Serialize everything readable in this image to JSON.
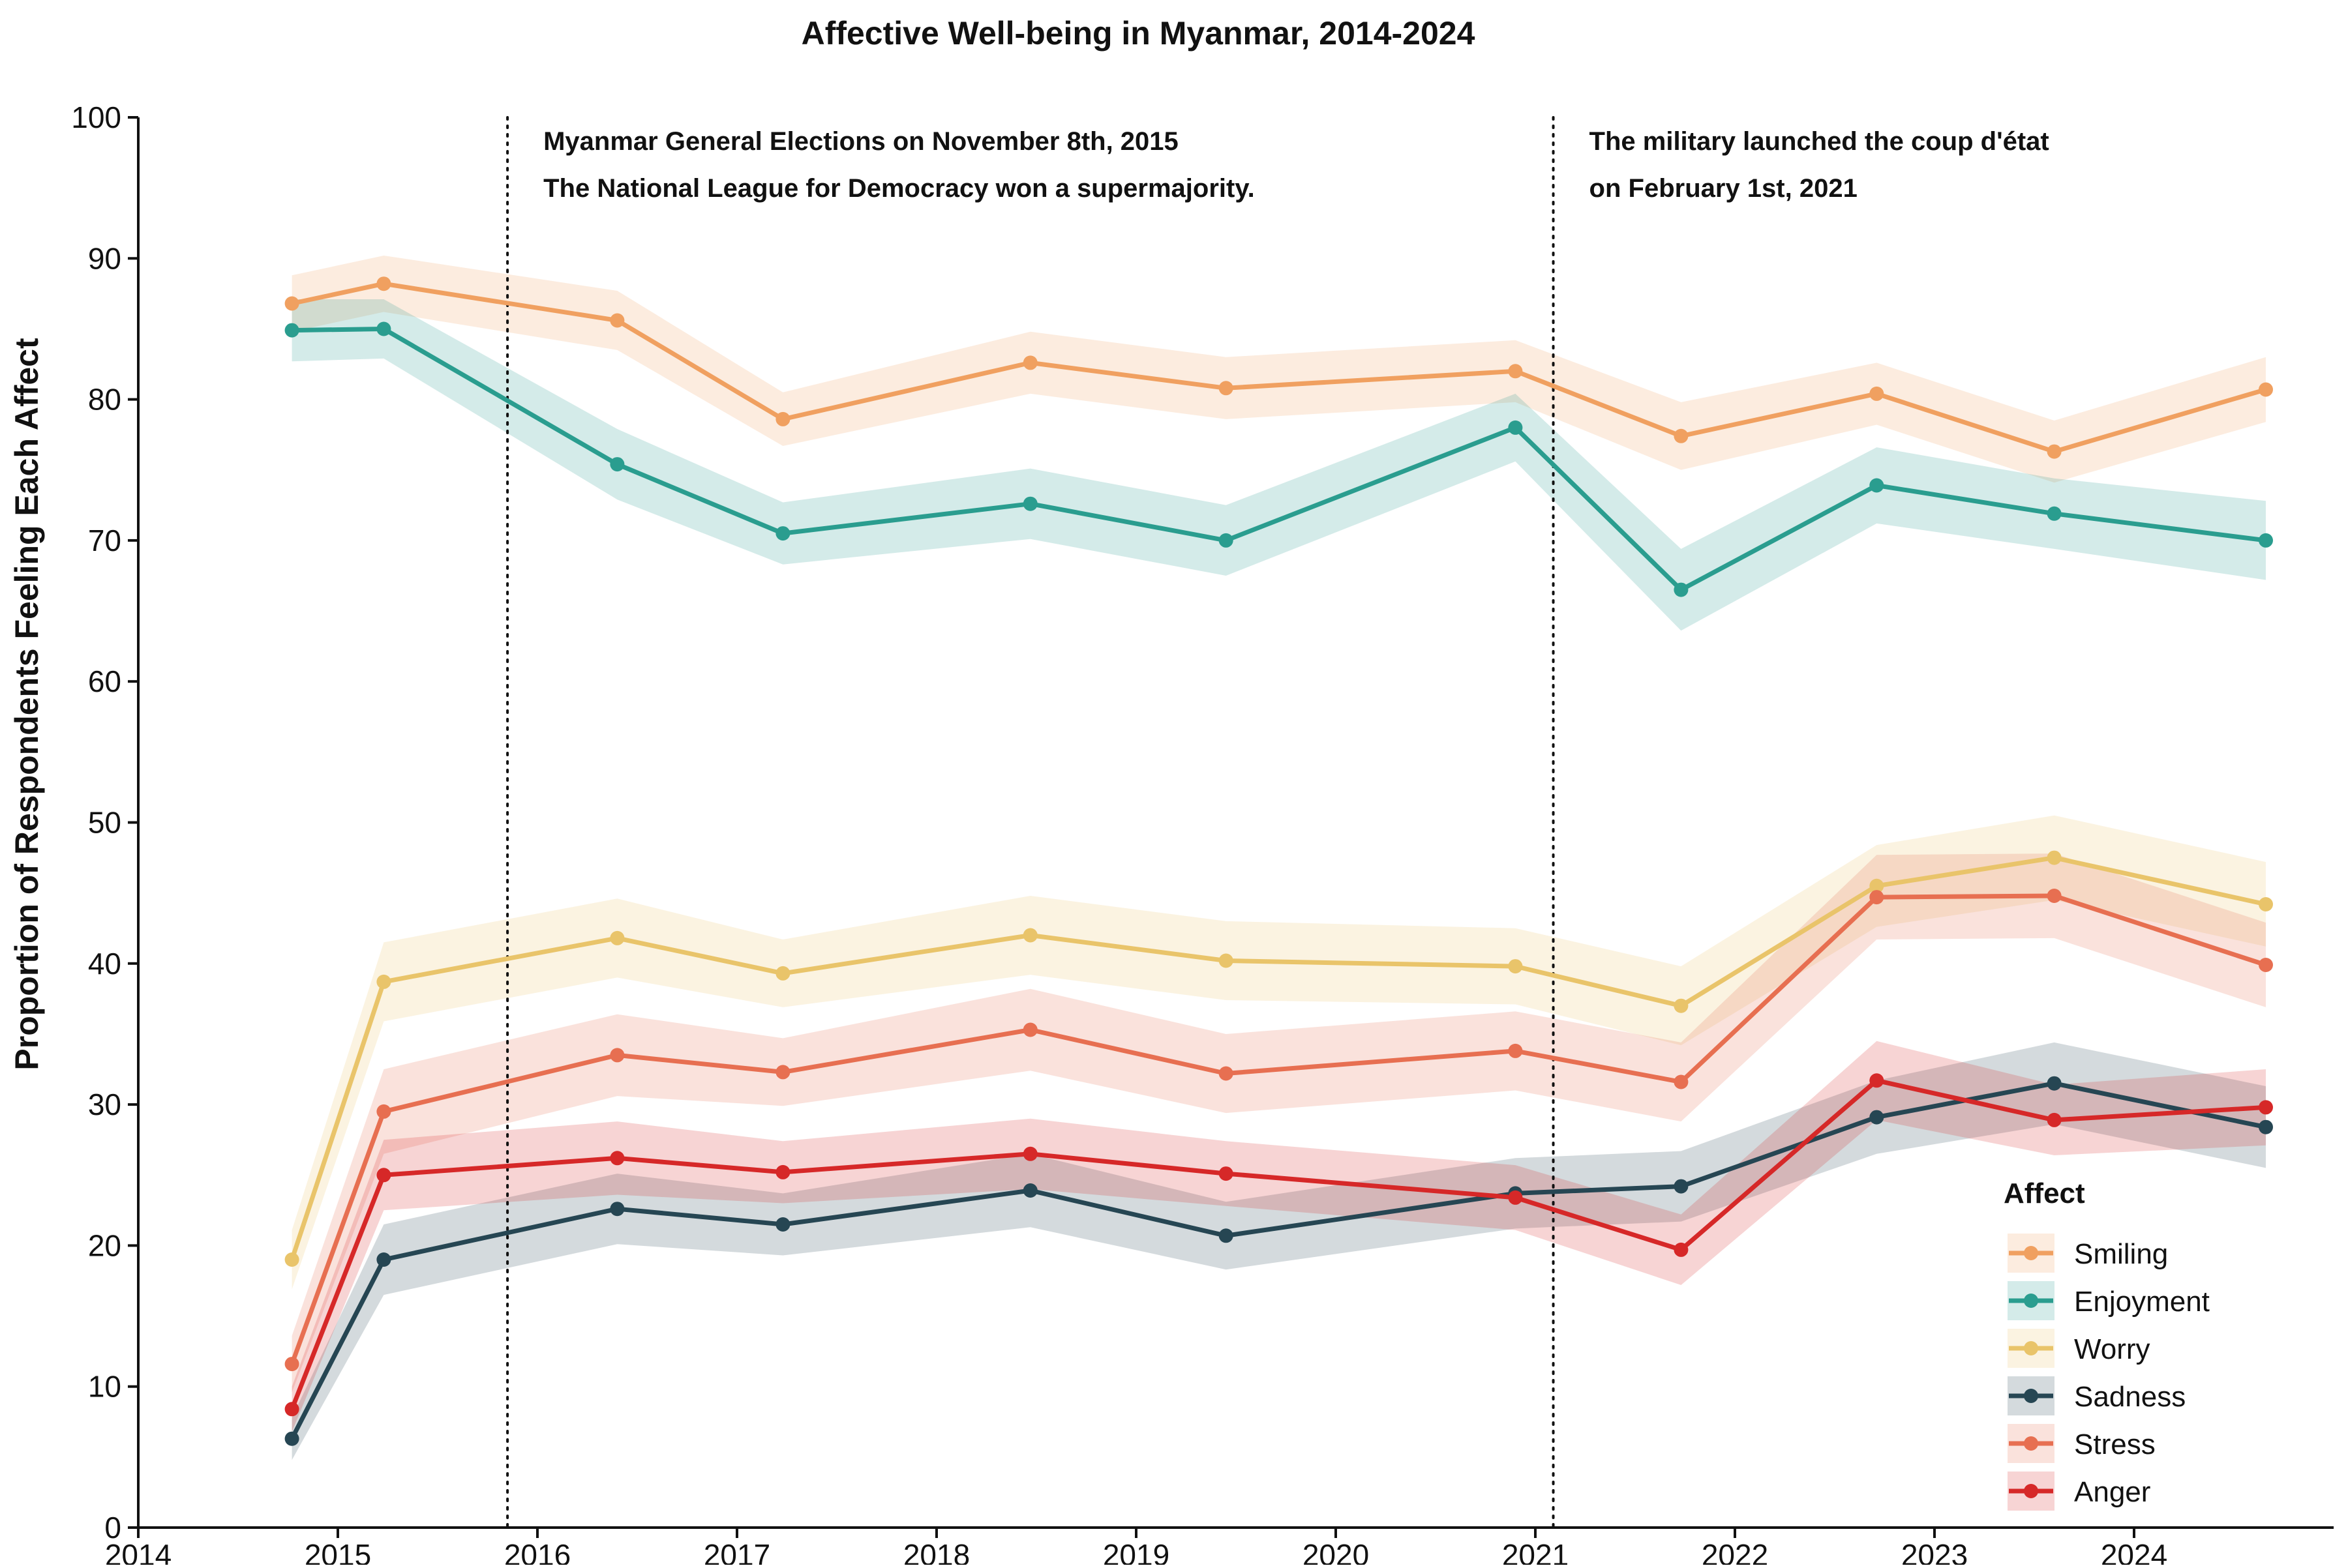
{
  "chart_data": {
    "type": "line",
    "title": "Affective Well-being in Myanmar, 2014-2024",
    "xlabel": "",
    "ylabel": "Proportion of Respondents Feeling Each Affect",
    "xlim": [
      2014,
      2025
    ],
    "ylim": [
      0,
      100
    ],
    "x_ticks": [
      2014,
      2015,
      2016,
      2017,
      2018,
      2019,
      2020,
      2021,
      2022,
      2023,
      2024
    ],
    "y_ticks": [
      0,
      10,
      20,
      30,
      40,
      50,
      60,
      70,
      80,
      90,
      100
    ],
    "grid": false,
    "legend": {
      "title": "Affect",
      "position": "lower-right"
    },
    "x": [
      2014.77,
      2015.23,
      2016.4,
      2017.23,
      2018.47,
      2019.45,
      2020.9,
      2021.73,
      2022.71,
      2023.6,
      2024.66
    ],
    "series": [
      {
        "name": "Smiling",
        "color": "#F0A060",
        "band_color": "#FDE3D3",
        "values": [
          86.8,
          88.2,
          85.6,
          78.6,
          82.6,
          80.8,
          82.0,
          77.4,
          80.4,
          76.3,
          80.7
        ],
        "lower": [
          84.8,
          86.2,
          83.5,
          76.7,
          80.4,
          78.6,
          79.8,
          75.0,
          78.2,
          74.1,
          78.4
        ],
        "upper": [
          88.8,
          90.2,
          87.7,
          80.5,
          84.8,
          83.0,
          84.2,
          79.8,
          82.6,
          78.5,
          83.0
        ]
      },
      {
        "name": "Enjoyment",
        "color": "#2A9D8F",
        "band_color": "#CCE8E4",
        "values": [
          84.9,
          85.0,
          75.4,
          70.5,
          72.6,
          70.0,
          78.0,
          66.5,
          73.9,
          71.9,
          70.0
        ],
        "lower": [
          82.7,
          82.9,
          72.9,
          68.3,
          70.1,
          67.5,
          75.6,
          63.6,
          71.2,
          69.4,
          67.2
        ],
        "upper": [
          87.1,
          87.1,
          77.9,
          72.7,
          75.1,
          72.5,
          80.4,
          69.4,
          76.6,
          74.4,
          72.8
        ]
      },
      {
        "name": "Worry",
        "color": "#E9C46A",
        "band_color": "#FAEED5",
        "values": [
          19.0,
          38.7,
          41.8,
          39.3,
          42.0,
          40.2,
          39.8,
          37.0,
          45.5,
          47.5,
          44.2
        ],
        "lower": [
          16.9,
          35.9,
          39.0,
          36.9,
          39.2,
          37.4,
          37.1,
          34.2,
          42.6,
          44.5,
          41.2
        ],
        "upper": [
          21.1,
          41.5,
          44.6,
          41.7,
          44.8,
          43.0,
          42.5,
          39.8,
          48.4,
          50.5,
          47.2
        ]
      },
      {
        "name": "Sadness",
        "color": "#264653",
        "band_color": "#D2D8DC",
        "values": [
          6.3,
          19.0,
          22.6,
          21.5,
          23.9,
          20.7,
          23.7,
          24.2,
          29.1,
          31.5,
          28.4
        ],
        "lower": [
          4.8,
          16.5,
          20.1,
          19.3,
          21.3,
          18.3,
          21.2,
          21.7,
          26.5,
          28.6,
          25.5
        ],
        "upper": [
          7.8,
          21.5,
          25.1,
          23.7,
          26.5,
          23.1,
          26.2,
          26.7,
          31.7,
          34.4,
          31.3
        ]
      },
      {
        "name": "Stress",
        "color": "#E76F51",
        "band_color": "#F9D5CC",
        "values": [
          11.6,
          29.5,
          33.5,
          32.3,
          35.3,
          32.2,
          33.8,
          31.6,
          44.7,
          44.8,
          39.9
        ],
        "lower": [
          9.6,
          26.5,
          30.6,
          29.9,
          32.4,
          29.4,
          31.0,
          28.8,
          41.7,
          41.8,
          36.9
        ],
        "upper": [
          13.6,
          32.5,
          36.4,
          34.7,
          38.2,
          35.0,
          36.6,
          34.4,
          47.7,
          47.8,
          42.9
        ]
      },
      {
        "name": "Anger",
        "color": "#D62828",
        "band_color": "#F5CACA",
        "values": [
          8.4,
          25.0,
          26.2,
          25.2,
          26.5,
          25.1,
          23.4,
          19.7,
          31.7,
          28.9,
          29.8
        ],
        "lower": [
          6.8,
          22.5,
          23.6,
          23.0,
          24.0,
          22.8,
          21.1,
          17.2,
          28.9,
          26.4,
          27.1
        ],
        "upper": [
          10.0,
          27.5,
          28.8,
          27.4,
          29.0,
          27.4,
          25.7,
          22.2,
          34.5,
          31.4,
          32.5
        ]
      }
    ],
    "annotations": [
      {
        "x": 2015.85,
        "lines": [
          "Myanmar General Elections on November 8th, 2015",
          "The National League for Democracy won a supermajority."
        ]
      },
      {
        "x": 2021.09,
        "lines": [
          "The military launched the coup d'état",
          "on February 1st, 2021"
        ]
      }
    ]
  }
}
